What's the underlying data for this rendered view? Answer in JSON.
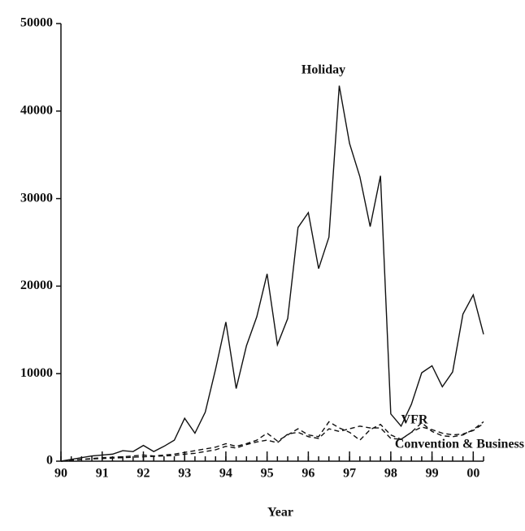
{
  "chart_data": {
    "type": "line",
    "xlabel": "Year",
    "x": [
      90,
      90.25,
      90.5,
      90.75,
      91,
      91.25,
      91.5,
      91.75,
      92,
      92.25,
      92.5,
      92.75,
      93,
      93.25,
      93.5,
      93.75,
      94,
      94.25,
      94.5,
      94.75,
      95,
      95.25,
      95.5,
      95.75,
      96,
      96.25,
      96.5,
      96.75,
      97,
      97.25,
      97.5,
      97.75,
      98,
      98.25,
      98.5,
      98.75,
      99,
      99.25,
      99.5,
      99.75,
      100,
      100.25
    ],
    "series": [
      {
        "name": "Holiday",
        "color": "#111111",
        "style": "solid",
        "values": [
          0,
          200,
          400,
          600,
          700,
          800,
          1200,
          1100,
          1800,
          1100,
          1700,
          2400,
          4900,
          3200,
          5600,
          10500,
          15900,
          8300,
          13200,
          16500,
          21400,
          13300,
          16300,
          26700,
          28400,
          22000,
          25600,
          42900,
          36300,
          32500,
          26800,
          32600,
          5400,
          4000,
          6500,
          10100,
          10900,
          8500,
          10200,
          16800,
          19000,
          14500
        ]
      },
      {
        "name": "VFR",
        "color": "#111111",
        "style": "dashed",
        "values": [
          0,
          100,
          200,
          300,
          400,
          450,
          500,
          600,
          700,
          600,
          700,
          800,
          1000,
          1200,
          1400,
          1600,
          2000,
          1700,
          2000,
          2400,
          3200,
          2300,
          3000,
          3700,
          3000,
          2800,
          4500,
          3800,
          3300,
          2400,
          3600,
          4200,
          3000,
          2500,
          3300,
          4400,
          3400,
          2900,
          2800,
          3000,
          3600,
          4500
        ]
      },
      {
        "name": "Convention & Business",
        "color": "#111111",
        "style": "dashed",
        "values": [
          0,
          100,
          200,
          250,
          300,
          350,
          400,
          450,
          500,
          550,
          600,
          650,
          800,
          900,
          1100,
          1300,
          1700,
          1500,
          1900,
          2200,
          2400,
          2100,
          3100,
          3300,
          2800,
          2600,
          3700,
          3400,
          3700,
          4000,
          3800,
          3800,
          2600,
          2500,
          3300,
          3900,
          3600,
          3200,
          3000,
          3100,
          3500,
          4300
        ]
      }
    ],
    "xlim": [
      90,
      100.25
    ],
    "xticks": [
      90,
      91,
      92,
      93,
      94,
      95,
      96,
      97,
      98,
      99,
      {
        "value": 100,
        "label": "00"
      }
    ],
    "ylim": [
      0,
      50000
    ],
    "yticks": [
      0,
      10000,
      20000,
      30000,
      40000,
      50000
    ],
    "grid": false
  }
}
